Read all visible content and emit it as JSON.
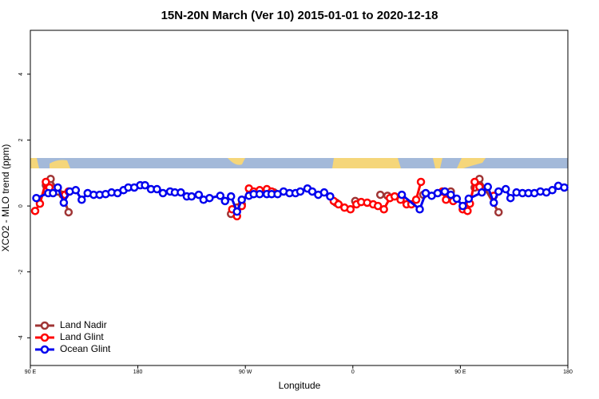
{
  "chart_data": {
    "type": "line",
    "title": "15N-20N March (Ver 10)   2015-01-01 to 2020-12-18",
    "xlabel": "Longitude",
    "ylabel": "XCO2 - MLO trend (ppm)",
    "xlim": [
      90,
      540
    ],
    "ylim": [
      -4.84,
      5.33
    ],
    "xticks": [
      {
        "value": 90,
        "label": "90 E"
      },
      {
        "value": 180,
        "label": "180"
      },
      {
        "value": 270,
        "label": "90 W"
      },
      {
        "value": 360,
        "label": "0"
      },
      {
        "value": 450,
        "label": "90 E"
      },
      {
        "value": 540,
        "label": "180"
      }
    ],
    "yticks": [
      -4,
      -2,
      0,
      2,
      4
    ],
    "legend": "bottom-left",
    "series": [
      {
        "name": "Land Nadir",
        "color": "#a03535",
        "x": [
          103,
          107,
          113,
          117,
          122,
          null,
          258,
          263,
          267,
          null,
          294,
          null,
          346,
          null,
          362,
          null,
          383,
          389,
          null,
          419,
          null,
          437,
          442,
          null,
          462,
          466,
          482
        ],
        "values": [
          0.63,
          0.82,
          0.44,
          0.34,
          -0.19,
          null,
          -0.24,
          -0.05,
          0.05,
          null,
          0.41,
          null,
          0.1,
          null,
          0.15,
          null,
          0.34,
          0.31,
          null,
          0.34,
          null,
          0.44,
          0.44,
          null,
          0.56,
          0.82,
          -0.19
        ]
      },
      {
        "name": "Land Glint",
        "color": "#ff0000",
        "x": [
          94,
          98,
          103,
          106,
          null,
          119,
          122,
          null,
          259,
          263,
          267,
          273,
          277,
          282,
          288,
          292,
          null,
          344,
          348,
          353,
          358,
          363,
          367,
          372,
          377,
          381,
          386,
          391,
          395,
          400,
          405,
          409,
          413,
          417,
          null,
          435,
          438,
          444,
          null,
          452,
          456,
          458,
          462,
          466,
          null,
          478
        ],
        "values": [
          -0.15,
          0.07,
          0.73,
          0.56,
          null,
          0.34,
          0.44,
          null,
          -0.1,
          -0.31,
          0,
          0.53,
          0.44,
          0.48,
          0.51,
          0.44,
          null,
          0.15,
          0.05,
          -0.05,
          -0.1,
          0.05,
          0.12,
          0.1,
          0.05,
          0,
          -0.1,
          0.24,
          0.29,
          0.19,
          0.05,
          0.05,
          0.19,
          0.73,
          null,
          0.44,
          0.19,
          0.15,
          null,
          -0.1,
          -0.15,
          0.07,
          0.73,
          0.58,
          null,
          0.31
        ]
      },
      {
        "name": "Ocean Glint",
        "color": "#0000ee",
        "x": [
          95,
          105,
          109,
          113,
          118,
          123,
          128,
          133,
          138,
          143,
          148,
          153,
          158,
          163,
          168,
          172,
          177,
          182,
          186,
          191,
          196,
          201,
          207,
          211,
          216,
          221,
          225,
          231,
          235,
          240,
          249,
          253,
          258,
          263,
          267,
          273,
          277,
          282,
          288,
          292,
          297,
          302,
          307,
          312,
          316,
          322,
          326,
          331,
          336,
          341,
          null,
          401,
          416,
          421,
          426,
          431,
          437,
          442,
          447,
          452,
          457,
          468,
          473,
          478,
          482,
          488,
          492,
          497,
          502,
          507,
          512,
          517,
          522,
          527,
          532,
          537
        ],
        "values": [
          0.24,
          0.39,
          0.39,
          0.56,
          0.1,
          0.44,
          0.48,
          0.19,
          0.39,
          0.34,
          0.34,
          0.36,
          0.41,
          0.39,
          0.48,
          0.56,
          0.56,
          0.63,
          0.63,
          0.51,
          0.51,
          0.39,
          0.44,
          0.41,
          0.41,
          0.29,
          0.29,
          0.34,
          0.19,
          0.24,
          0.31,
          0.15,
          0.29,
          -0.17,
          0.19,
          0.31,
          0.36,
          0.36,
          0.36,
          0.36,
          0.36,
          0.44,
          0.39,
          0.39,
          0.44,
          0.53,
          0.44,
          0.34,
          0.41,
          0.29,
          null,
          0.34,
          -0.1,
          0.39,
          0.31,
          0.39,
          0.44,
          0.34,
          0.22,
          0,
          0.22,
          0.41,
          0.58,
          0.1,
          0.44,
          0.51,
          0.24,
          0.41,
          0.39,
          0.39,
          0.39,
          0.44,
          0.41,
          0.48,
          0.61,
          0.56
        ]
      }
    ]
  }
}
